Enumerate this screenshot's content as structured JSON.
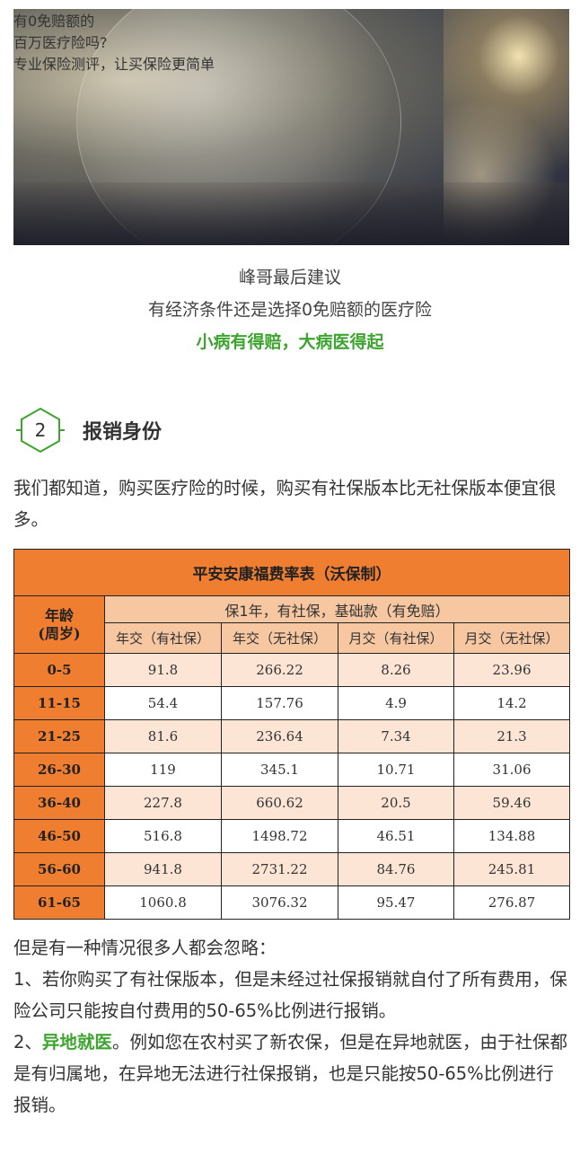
{
  "banner": {
    "title_line1": "有0免赔额的",
    "title_line2": "百万医疗险吗?",
    "tagline": "专业保险测评，让买保险更简单"
  },
  "recommend": {
    "line1": "峰哥最后建议",
    "line2": "有经济条件还是选择0免赔额的医疗险",
    "line3": "小病有得赔，大病医得起"
  },
  "section": {
    "number": "2",
    "title": "报销身份"
  },
  "intro": "我们都知道，购买医疗险的时候，购买有社保版本比无社保版本便宜很多。",
  "table": {
    "caption": "平安安康福费率表（沃保制）",
    "age_header_line1": "年龄",
    "age_header_line2": "(周岁)",
    "group_header": "保1年，有社保，基础款（有免赔）",
    "columns": [
      "年交（有社保）",
      "年交（无社保）",
      "月交（有社保）",
      "月交（无社保）"
    ],
    "rows": [
      {
        "age": "0-5",
        "values": [
          "91.8",
          "266.22",
          "8.26",
          "23.96"
        ]
      },
      {
        "age": "11-15",
        "values": [
          "54.4",
          "157.76",
          "4.9",
          "14.2"
        ]
      },
      {
        "age": "21-25",
        "values": [
          "81.6",
          "236.64",
          "7.34",
          "21.3"
        ]
      },
      {
        "age": "26-30",
        "values": [
          "119",
          "345.1",
          "10.71",
          "31.06"
        ]
      },
      {
        "age": "36-40",
        "values": [
          "227.8",
          "660.62",
          "20.5",
          "59.46"
        ]
      },
      {
        "age": "46-50",
        "values": [
          "516.8",
          "1498.72",
          "46.51",
          "134.88"
        ]
      },
      {
        "age": "56-60",
        "values": [
          "941.8",
          "2731.22",
          "84.76",
          "245.81"
        ]
      },
      {
        "age": "61-65",
        "values": [
          "1060.8",
          "3076.32",
          "95.47",
          "276.87"
        ]
      }
    ]
  },
  "body": {
    "line1": "但是有一种情况很多人都会忽略：",
    "item1": "1、若你购买了有社保版本，但是未经过社保报销就自付了所有费用，保险公司只能按自付费用的50-65%比例进行报销。",
    "item2_prefix": "2、",
    "item2_highlight": "异地就医",
    "item2_rest": "。例如您在农村买了新农保，但是在异地就医，由于社保都是有归属地，在异地无法进行社保报销，也是只能按50-65%比例进行报销。"
  },
  "colors": {
    "accent_green": "#3da52f",
    "table_orange": "#f07e30",
    "table_peach": "#f6c7a1",
    "row_tint": "#fde5d6"
  }
}
